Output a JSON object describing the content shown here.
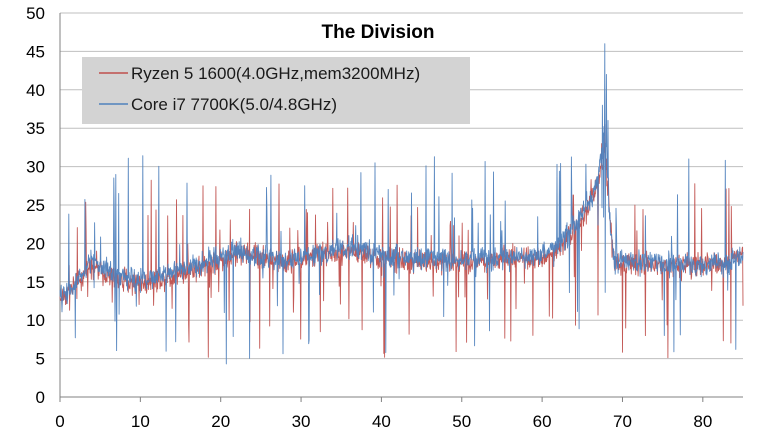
{
  "chart_data": {
    "type": "line",
    "title": "The Division",
    "xlabel": "",
    "ylabel": "",
    "xlim": [
      0,
      85
    ],
    "ylim": [
      0,
      50
    ],
    "x_ticks": [
      0,
      10,
      20,
      30,
      40,
      50,
      60,
      70,
      80
    ],
    "y_ticks": [
      0,
      5,
      10,
      15,
      20,
      25,
      30,
      35,
      40,
      45,
      50
    ],
    "grid": "horizontal",
    "legend_position": "top-left",
    "sample_step": 0.05,
    "series": [
      {
        "name": "Ryzen 5 1600(4.0GHz,mem3200MHz)",
        "color": "#c0504d",
        "baseline": [
          [
            0,
            12.8
          ],
          [
            2,
            14.5
          ],
          [
            4,
            17.5
          ],
          [
            5,
            16.5
          ],
          [
            7,
            15.5
          ],
          [
            10,
            14.8
          ],
          [
            13,
            15.5
          ],
          [
            16,
            16.5
          ],
          [
            19,
            17.5
          ],
          [
            22,
            18.5
          ],
          [
            24,
            18.5
          ],
          [
            26,
            18.0
          ],
          [
            28,
            17.5
          ],
          [
            30,
            18.0
          ],
          [
            33,
            18.5
          ],
          [
            36,
            19.0
          ],
          [
            40,
            18.0
          ],
          [
            45,
            17.5
          ],
          [
            50,
            17.5
          ],
          [
            55,
            18.0
          ],
          [
            60,
            18.2
          ],
          [
            62,
            19.5
          ],
          [
            64,
            22.0
          ],
          [
            66,
            25.0
          ],
          [
            67,
            28.0
          ],
          [
            67.8,
            32.0
          ],
          [
            68.5,
            22.0
          ],
          [
            69,
            17.5
          ],
          [
            72,
            17.5
          ],
          [
            75,
            17.2
          ],
          [
            80,
            17.0
          ],
          [
            83,
            17.5
          ],
          [
            85,
            19.0
          ]
        ],
        "noise": 1.5,
        "spike_rate": 0.06,
        "spike_down_min": 4.5,
        "spike_up_max": 28.5,
        "peak": [
          [
            67.4,
            33.0
          ],
          [
            67.8,
            35.5
          ],
          [
            68.0,
            31.0
          ]
        ]
      },
      {
        "name": "Core i7 7700K(5.0/4.8GHz)",
        "color": "#4f81bd",
        "baseline": [
          [
            0,
            12.8
          ],
          [
            2,
            14.8
          ],
          [
            4,
            18.0
          ],
          [
            5,
            17.0
          ],
          [
            7,
            15.8
          ],
          [
            10,
            15.2
          ],
          [
            13,
            16.0
          ],
          [
            16,
            17.0
          ],
          [
            19,
            18.0
          ],
          [
            22,
            19.0
          ],
          [
            24,
            18.5
          ],
          [
            26,
            18.2
          ],
          [
            28,
            17.8
          ],
          [
            30,
            18.2
          ],
          [
            33,
            18.8
          ],
          [
            36,
            19.5
          ],
          [
            40,
            18.5
          ],
          [
            45,
            18.0
          ],
          [
            50,
            17.8
          ],
          [
            55,
            18.0
          ],
          [
            60,
            18.5
          ],
          [
            62,
            20.0
          ],
          [
            64,
            22.5
          ],
          [
            66,
            25.5
          ],
          [
            67,
            29.0
          ],
          [
            67.8,
            34.0
          ],
          [
            68.5,
            22.0
          ],
          [
            69,
            17.8
          ],
          [
            72,
            17.8
          ],
          [
            75,
            17.5
          ],
          [
            80,
            17.2
          ],
          [
            83,
            17.5
          ],
          [
            85,
            18.5
          ]
        ],
        "noise": 1.5,
        "spike_rate": 0.05,
        "spike_down_min": 4.0,
        "spike_up_max": 31.5,
        "peak": [
          [
            67.5,
            38.0
          ],
          [
            67.8,
            46.0
          ],
          [
            68.0,
            42.0
          ],
          [
            68.2,
            36.0
          ]
        ]
      }
    ]
  }
}
